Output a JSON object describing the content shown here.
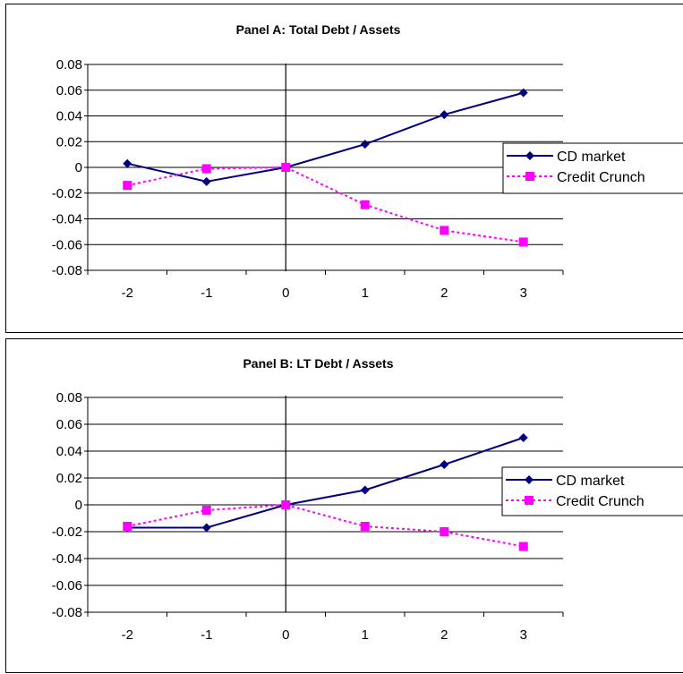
{
  "chart_data": [
    {
      "type": "line",
      "title": "Panel A: Total Debt / Assets",
      "xlabel": "",
      "ylabel": "",
      "categories": [
        "-2",
        "-1",
        "0",
        "1",
        "2",
        "3"
      ],
      "ylim": [
        -0.08,
        0.08
      ],
      "yticks": [
        "0.08",
        "0.06",
        "0.04",
        "0.02",
        "0",
        "-0.02",
        "-0.04",
        "-0.06",
        "-0.08"
      ],
      "grid": true,
      "legend_position": "right",
      "series": [
        {
          "name": "CD market",
          "values": [
            0.003,
            -0.011,
            0.0,
            0.018,
            0.041,
            0.058
          ],
          "color": "#000080",
          "style": "solid",
          "marker": "diamond"
        },
        {
          "name": "Credit Crunch",
          "values": [
            -0.014,
            -0.001,
            0.0,
            -0.029,
            -0.049,
            -0.058
          ],
          "color": "#FF00FF",
          "style": "dotted",
          "marker": "square"
        }
      ]
    },
    {
      "type": "line",
      "title": "Panel B: LT Debt / Assets",
      "xlabel": "",
      "ylabel": "",
      "categories": [
        "-2",
        "-1",
        "0",
        "1",
        "2",
        "3"
      ],
      "ylim": [
        -0.08,
        0.08
      ],
      "yticks": [
        "0.08",
        "0.06",
        "0.04",
        "0.02",
        "0",
        "-0.02",
        "-0.04",
        "-0.06",
        "-0.08"
      ],
      "grid": true,
      "legend_position": "right",
      "series": [
        {
          "name": "CD market",
          "values": [
            -0.017,
            -0.017,
            0.0,
            0.011,
            0.03,
            0.05
          ],
          "color": "#000080",
          "style": "solid",
          "marker": "diamond"
        },
        {
          "name": "Credit Crunch",
          "values": [
            -0.016,
            -0.004,
            0.0,
            -0.016,
            -0.02,
            -0.031
          ],
          "color": "#FF00FF",
          "style": "dotted",
          "marker": "square"
        }
      ]
    }
  ]
}
